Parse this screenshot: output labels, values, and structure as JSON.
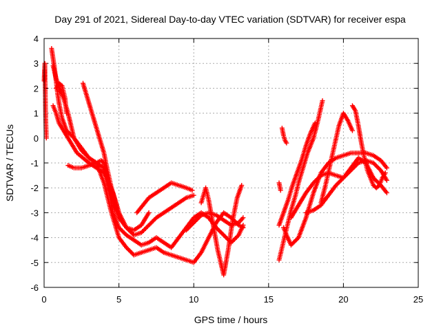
{
  "chart_data": {
    "type": "scatter",
    "title": "Day 291 of 2021, Sidereal Day-to-day VTEC variation (SDTVAR) for receiver espa",
    "xlabel": "GPS time / hours",
    "ylabel": "SDTVAR / TECUs",
    "xlim": [
      0,
      25
    ],
    "ylim": [
      -6,
      4
    ],
    "xticks": [
      0,
      5,
      10,
      15,
      20,
      25
    ],
    "yticks": [
      -6,
      -5,
      -4,
      -3,
      -2,
      -1,
      0,
      1,
      2,
      3,
      4
    ],
    "grid": true,
    "marker": "+",
    "color": "#ff0000",
    "series": [
      {
        "name": "s1",
        "x": [
          0.0,
          0.05,
          0.1,
          0.15
        ],
        "y": [
          2.3,
          3.0,
          1.0,
          0.0
        ]
      },
      {
        "name": "s2",
        "x": [
          0.5,
          0.6,
          0.7,
          0.8,
          0.9,
          1.0,
          1.2,
          1.5,
          2.0,
          2.5,
          3.0,
          3.5,
          4.0,
          4.5,
          5.0,
          5.5,
          6.0,
          6.5,
          7.0,
          7.5,
          8.0,
          8.5,
          9.0,
          9.5,
          10.0,
          10.5,
          11.0,
          11.5,
          12.0,
          12.5,
          13.0,
          13.3
        ],
        "y": [
          3.6,
          3.2,
          2.8,
          2.3,
          1.8,
          1.4,
          0.8,
          0.3,
          0.0,
          -0.4,
          -0.8,
          -1.0,
          -1.8,
          -3.0,
          -4.0,
          -4.4,
          -4.7,
          -4.6,
          -4.5,
          -4.4,
          -4.6,
          -4.7,
          -4.8,
          -4.9,
          -5.0,
          -4.6,
          -4.0,
          -3.4,
          -3.0,
          -3.2,
          -3.5,
          -3.6
        ]
      },
      {
        "name": "s3",
        "x": [
          0.6,
          0.8,
          1.0,
          1.3,
          1.6,
          2.0,
          2.5,
          3.0,
          3.5,
          4.0,
          4.3,
          4.6,
          5.0,
          5.5,
          6.0,
          6.5,
          7.0,
          7.5,
          8.0,
          8.5,
          9.0,
          9.5,
          10.0,
          10.5,
          11.0,
          11.5,
          12.0,
          12.5,
          13.0,
          13.3
        ],
        "y": [
          2.9,
          2.4,
          2.0,
          1.6,
          1.0,
          0.0,
          -0.5,
          -0.8,
          -1.0,
          -1.2,
          -2.0,
          -3.0,
          -3.6,
          -3.9,
          -4.1,
          -4.3,
          -4.2,
          -4.0,
          -4.2,
          -4.4,
          -4.0,
          -3.6,
          -3.2,
          -3.0,
          -3.2,
          -3.6,
          -3.9,
          -4.2,
          -3.9,
          -3.5
        ]
      },
      {
        "name": "s4",
        "x": [
          0.6,
          0.8,
          1.0,
          1.2,
          1.4,
          1.6,
          1.8,
          2.0,
          2.2,
          2.6,
          3.0,
          3.5,
          4.0
        ],
        "y": [
          1.3,
          1.0,
          0.6,
          0.4,
          0.2,
          0.0,
          -0.2,
          -0.4,
          -0.6,
          -0.8,
          -1.0,
          -1.2,
          -1.4
        ]
      },
      {
        "name": "s5",
        "x": [
          1.6,
          2.0,
          2.5,
          3.0,
          3.5,
          3.8,
          4.0,
          4.5,
          5.0,
          5.5,
          6.0,
          6.5,
          7.0
        ],
        "y": [
          -1.1,
          -1.2,
          -1.2,
          -1.1,
          -1.0,
          -0.9,
          -1.0,
          -2.4,
          -3.2,
          -3.6,
          -3.7,
          -3.5,
          -3.0
        ]
      },
      {
        "name": "s6",
        "x": [
          2.6,
          2.8,
          3.0,
          3.2,
          3.4,
          3.6,
          3.8,
          4.0,
          4.2,
          4.5,
          5.0,
          5.5,
          6.0,
          6.5,
          7.0,
          7.5,
          8.0,
          8.5,
          9.0,
          9.5,
          10.0
        ],
        "y": [
          2.2,
          1.8,
          1.4,
          1.0,
          0.6,
          0.2,
          -0.2,
          -0.6,
          -1.2,
          -2.0,
          -3.0,
          -3.6,
          -3.9,
          -3.8,
          -3.5,
          -3.2,
          -3.0,
          -2.8,
          -2.6,
          -2.4,
          -2.3
        ]
      },
      {
        "name": "s7",
        "x": [
          6.2,
          6.6,
          7.0,
          7.5,
          8.0,
          8.5,
          9.0,
          9.5,
          9.9
        ],
        "y": [
          -3.0,
          -2.7,
          -2.4,
          -2.2,
          -2.0,
          -1.8,
          -1.9,
          -2.0,
          -2.1
        ]
      },
      {
        "name": "s8",
        "x": [
          0.8,
          1.0,
          1.2,
          1.4,
          1.5
        ],
        "y": [
          2.0,
          2.2,
          2.1,
          1.6,
          1.0
        ]
      },
      {
        "name": "s9",
        "x": [
          10.5,
          10.8,
          11.0,
          11.3,
          11.6,
          12.0,
          12.3,
          12.6,
          12.9,
          13.2
        ],
        "y": [
          -2.6,
          -2.0,
          -2.5,
          -3.5,
          -4.5,
          -5.5,
          -4.5,
          -3.3,
          -2.4,
          -1.9
        ]
      },
      {
        "name": "s10",
        "x": [
          9.5,
          10.0,
          10.5,
          11.0,
          11.5,
          12.0,
          12.5,
          13.0,
          13.3
        ],
        "y": [
          -3.7,
          -3.4,
          -3.1,
          -3.0,
          -3.1,
          -3.3,
          -3.5,
          -3.4,
          -3.2
        ]
      },
      {
        "name": "s11",
        "x": [
          4.0,
          4.2,
          4.4,
          4.6,
          4.8,
          5.0
        ],
        "y": [
          -1.4,
          -1.6,
          -1.9,
          -2.2,
          -2.6,
          -3.0
        ]
      },
      {
        "name": "s12",
        "x": [
          15.7,
          15.9,
          16.1,
          16.3,
          16.5,
          16.8,
          17.0,
          17.3,
          17.6,
          18.0,
          18.3,
          18.6
        ],
        "y": [
          -4.9,
          -4.4,
          -3.9,
          -3.4,
          -2.9,
          -2.3,
          -1.8,
          -1.2,
          -0.6,
          0.0,
          0.7,
          1.5
        ]
      },
      {
        "name": "s13",
        "x": [
          15.7,
          16.0,
          16.3,
          16.6,
          16.9,
          17.2,
          17.5,
          17.8,
          18.1
        ],
        "y": [
          -3.5,
          -3.0,
          -2.5,
          -1.9,
          -1.4,
          -0.9,
          -0.3,
          0.2,
          0.6
        ]
      },
      {
        "name": "s14",
        "x": [
          16.0,
          16.2,
          16.5,
          17.0,
          17.5,
          18.0,
          18.5,
          19.0,
          19.5,
          20.0,
          20.5,
          21.0,
          21.5,
          22.0,
          22.5,
          22.9
        ],
        "y": [
          -3.6,
          -3.9,
          -4.3,
          -4.0,
          -3.2,
          -2.2,
          -1.4,
          -1.0,
          -0.8,
          -0.7,
          -0.6,
          -0.6,
          -0.6,
          -0.7,
          -0.9,
          -1.2
        ]
      },
      {
        "name": "s15",
        "x": [
          16.5,
          17.0,
          17.5,
          18.0,
          18.5,
          19.0,
          19.5,
          20.0,
          20.5,
          21.0,
          21.5,
          22.0,
          22.5,
          22.9
        ],
        "y": [
          -3.2,
          -2.7,
          -2.2,
          -1.8,
          -1.5,
          -1.4,
          -1.5,
          -1.6,
          -1.2,
          -0.8,
          -1.0,
          -1.6,
          -1.9,
          -2.2
        ]
      },
      {
        "name": "s16",
        "x": [
          17.5,
          18.0,
          18.5,
          19.0,
          19.5,
          20.0,
          20.5,
          21.0,
          21.5,
          22.0,
          22.5,
          22.9
        ],
        "y": [
          -3.0,
          -2.9,
          -2.7,
          -2.3,
          -1.9,
          -1.6,
          -1.3,
          -1.0,
          -0.9,
          -1.0,
          -1.3,
          -1.7
        ]
      },
      {
        "name": "s17",
        "x": [
          18.5,
          18.8,
          19.1,
          19.4,
          19.7,
          20.0,
          20.3,
          20.6
        ],
        "y": [
          -2.6,
          -1.9,
          -1.1,
          -0.3,
          0.5,
          1.0,
          0.7,
          0.3
        ]
      },
      {
        "name": "s18",
        "x": [
          20.6,
          20.8,
          21.0,
          21.2,
          21.4,
          21.6,
          21.8,
          22.0,
          22.2,
          22.4,
          22.6,
          22.8
        ],
        "y": [
          1.3,
          1.1,
          0.5,
          -0.2,
          -0.8,
          -1.3,
          -1.6,
          -1.9,
          -2.0,
          -1.9,
          -1.6,
          -1.4
        ]
      },
      {
        "name": "s19",
        "x": [
          15.9,
          16.0,
          16.1,
          16.2
        ],
        "y": [
          0.4,
          0.1,
          -0.1,
          -0.2
        ]
      },
      {
        "name": "s20",
        "x": [
          15.7,
          15.8
        ],
        "y": [
          -1.8,
          -2.1
        ]
      }
    ]
  }
}
